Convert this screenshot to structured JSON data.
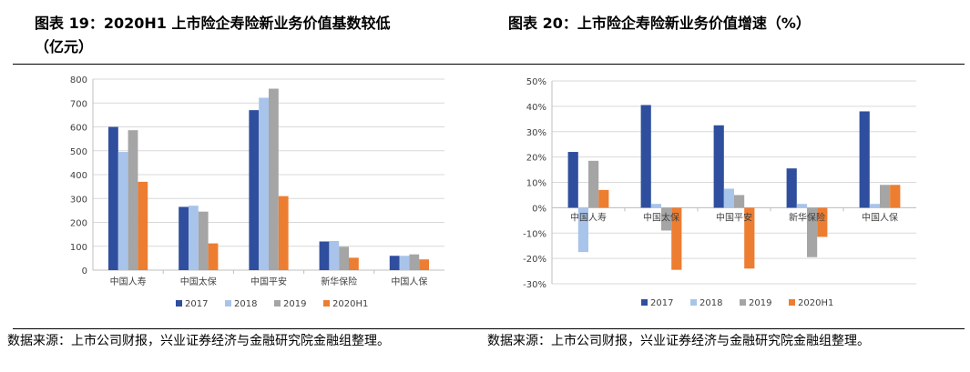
{
  "titles": {
    "left_line1": "图表 19：2020H1 上市险企寿险新业务价值基数较低",
    "left_line2": "（亿元）",
    "right": "图表 20：上市险企寿险新业务价值增速（%）"
  },
  "sources": {
    "left": "数据来源：上市公司财报，兴业证券经济与金融研究院金融组整理。",
    "right": "数据来源：上市公司财报，兴业证券经济与金融研究院金融组整理。"
  },
  "chart_data": [
    {
      "type": "bar",
      "title": "",
      "xlabel": "",
      "ylabel": "",
      "categories": [
        "中国人寿",
        "中国太保",
        "中国平安",
        "新华保险",
        "中国人保"
      ],
      "ylim": [
        0,
        800
      ],
      "yticks": [
        "0",
        "100",
        "200",
        "300",
        "400",
        "500",
        "600",
        "700",
        "800"
      ],
      "grid": true,
      "legend": "bottom",
      "series": [
        {
          "name": "2017",
          "color": "#2f4e9e",
          "values": [
            600,
            265,
            670,
            120,
            60
          ]
        },
        {
          "name": "2018",
          "color": "#a9c4ea",
          "values": [
            495,
            270,
            722,
            122,
            60
          ]
        },
        {
          "name": "2019",
          "color": "#a5a5a5",
          "values": [
            586,
            245,
            760,
            98,
            66
          ]
        },
        {
          "name": "2020H1",
          "color": "#ed7d31",
          "values": [
            370,
            112,
            310,
            52,
            45
          ]
        }
      ]
    },
    {
      "type": "bar",
      "title": "",
      "xlabel": "",
      "ylabel": "",
      "categories": [
        "中国人寿",
        "中国太保",
        "中国平安",
        "新华保险",
        "中国人保"
      ],
      "ylim": [
        -30,
        50
      ],
      "yticks": [
        "-30%",
        "-20%",
        "-10%",
        "0%",
        "10%",
        "20%",
        "30%",
        "40%",
        "50%"
      ],
      "grid": true,
      "legend": "bottom",
      "series": [
        {
          "name": "2017",
          "color": "#2f4e9e",
          "values": [
            22,
            40.5,
            32.5,
            15.5,
            38
          ]
        },
        {
          "name": "2018",
          "color": "#a9c4ea",
          "values": [
            -17.5,
            1.5,
            7.5,
            1.5,
            1.5
          ]
        },
        {
          "name": "2019",
          "color": "#a5a5a5",
          "values": [
            18.5,
            -9,
            5,
            -19.5,
            9
          ]
        },
        {
          "name": "2020H1",
          "color": "#ed7d31",
          "values": [
            7,
            -24.5,
            -24,
            -11.5,
            9
          ]
        }
      ]
    }
  ]
}
